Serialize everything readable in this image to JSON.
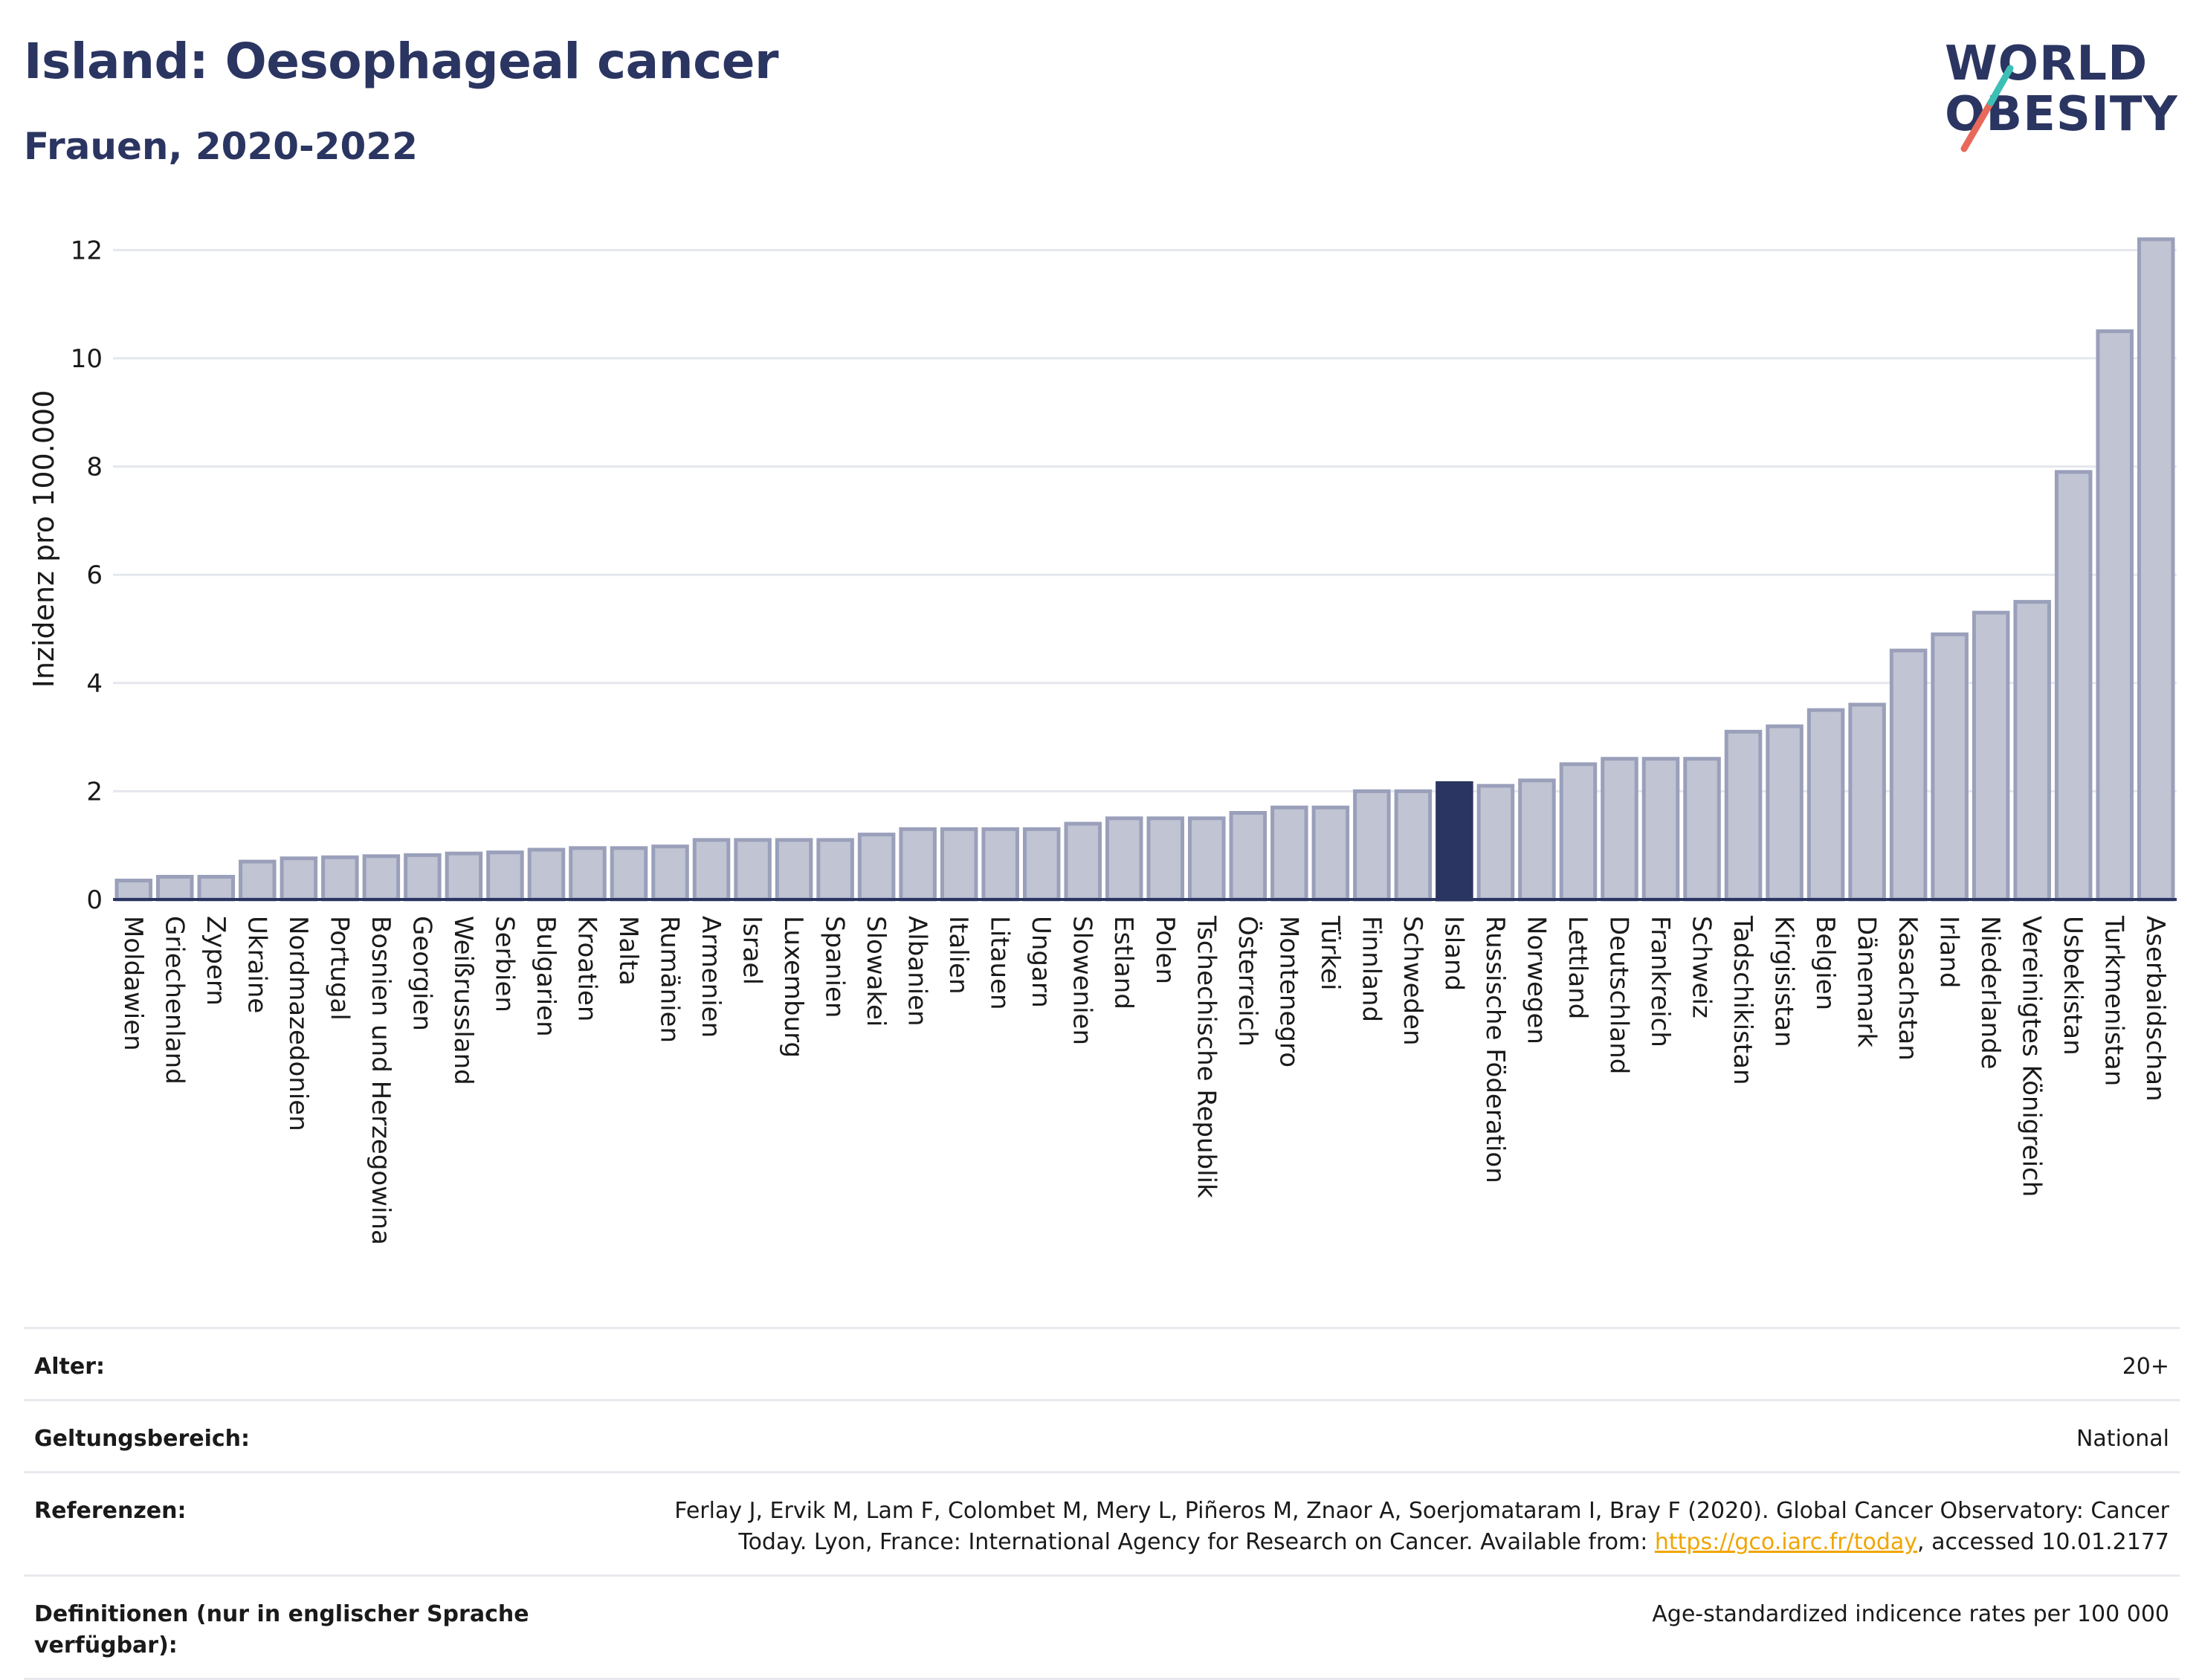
{
  "header": {
    "title": "Island: Oesophageal cancer",
    "subtitle": "Frauen, 2020-2022"
  },
  "logo": {
    "line1": "WORLD",
    "line2": "OBESITY",
    "text_color": "#2b3561",
    "slash_colors": [
      "#e8695a",
      "#3cbfb4"
    ]
  },
  "colors": {
    "bar_default": "#c0c4d3",
    "bar_default_stroke": "#9aa0ba",
    "bar_highlight": "#2b3561",
    "gridline": "#e5e7ee",
    "axis_line": "#2b3561"
  },
  "chart_data": {
    "type": "bar",
    "title": "",
    "xlabel": "",
    "ylabel": "Inzidenz pro 100.000",
    "ylim": [
      0,
      12.5
    ],
    "yticks": [
      0,
      2,
      4,
      6,
      8,
      10,
      12
    ],
    "grid": true,
    "highlight_category": "Island",
    "categories": [
      "Moldawien",
      "Griechenland",
      "Zypern",
      "Ukraine",
      "Nordmazedonien",
      "Portugal",
      "Bosnien und Herzegowina",
      "Georgien",
      "Weißrussland",
      "Serbien",
      "Bulgarien",
      "Kroatien",
      "Malta",
      "Rumänien",
      "Armenien",
      "Israel",
      "Luxemburg",
      "Spanien",
      "Slowakei",
      "Albanien",
      "Italien",
      "Litauen",
      "Ungarn",
      "Slowenien",
      "Estland",
      "Polen",
      "Tschechische Republik",
      "Österreich",
      "Montenegro",
      "Türkei",
      "Finnland",
      "Schweden",
      "Island",
      "Russische Föderation",
      "Norwegen",
      "Lettland",
      "Deutschland",
      "Frankreich",
      "Schweiz",
      "Tadschikistan",
      "Kirgisistan",
      "Belgien",
      "Dänemark",
      "Kasachstan",
      "Irland",
      "Niederlande",
      "Vereinigtes Königreich",
      "Usbekistan",
      "Turkmenistan",
      "Aserbaidschan"
    ],
    "values": [
      0.35,
      0.42,
      0.42,
      0.7,
      0.76,
      0.78,
      0.8,
      0.82,
      0.85,
      0.87,
      0.92,
      0.95,
      0.95,
      0.98,
      1.1,
      1.1,
      1.1,
      1.1,
      1.2,
      1.3,
      1.3,
      1.3,
      1.3,
      1.4,
      1.5,
      1.5,
      1.5,
      1.6,
      1.7,
      1.7,
      2.0,
      2.0,
      2.15,
      2.1,
      2.2,
      2.5,
      2.6,
      2.6,
      2.6,
      3.1,
      3.2,
      3.5,
      3.6,
      4.6,
      4.9,
      5.3,
      5.5,
      7.9,
      10.5,
      12.2
    ]
  },
  "info": {
    "rows": [
      {
        "label": "Alter:",
        "value": "20+"
      },
      {
        "label": "Geltungsbereich:",
        "value": "National"
      },
      {
        "label": "Referenzen:",
        "value_part1": "Ferlay J, Ervik M, Lam F, Colombet M, Mery L, Piñeros M, Znaor A, Soerjomataram I, Bray F (2020). Global Cancer Observatory: Cancer Today. Lyon, France: International Agency for Research on Cancer. Available from: ",
        "link": "https://gco.iarc.fr/today",
        "value_part2": ", accessed 10.01.2177"
      },
      {
        "label": "Definitionen (nur in englischer Sprache verfügbar):",
        "value": "Age-standardized indicence rates per 100 000"
      }
    ]
  }
}
